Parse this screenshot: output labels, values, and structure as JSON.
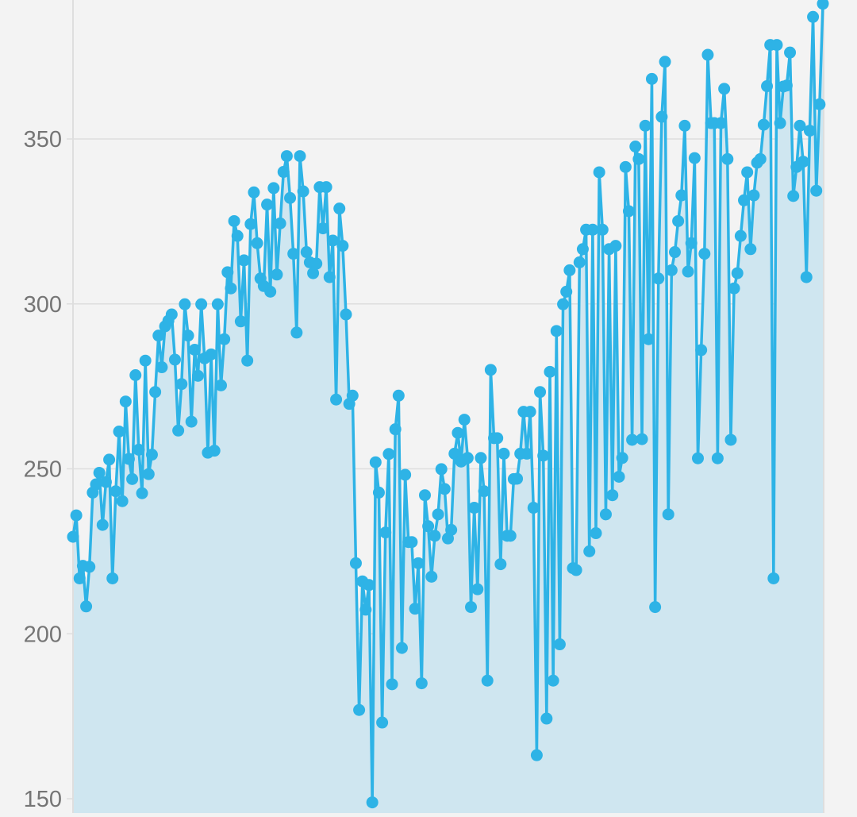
{
  "chart_data": {
    "type": "line",
    "title": "",
    "xlabel": "",
    "ylabel": "",
    "ylim": [
      148,
      391
    ],
    "yticks": [
      "150",
      "200",
      "250",
      "300",
      "350"
    ],
    "grid": true,
    "area_fill": true,
    "colors": {
      "line": "#2eb3e6",
      "fill": "#cfe6f0",
      "grid": "#dedede",
      "tick_label": "#757575",
      "background": "#f3f3f3"
    },
    "series": [
      {
        "values": [
          229.4,
          235.9,
          216.8,
          220.6,
          208.3,
          220.3,
          242.8,
          245.3,
          248.8,
          233.0,
          246.0,
          252.8,
          216.8,
          243.2,
          261.3,
          240.2,
          270.4,
          253.0,
          246.9,
          278.4,
          255.8,
          242.6,
          282.8,
          248.4,
          254.3,
          273.3,
          290.4,
          280.8,
          293.2,
          294.9,
          296.8,
          283.1,
          261.6,
          275.7,
          299.9,
          290.4,
          264.3,
          286.1,
          278.2,
          299.9,
          283.5,
          254.9,
          284.7,
          255.5,
          299.9,
          275.3,
          289.3,
          309.6,
          304.7,
          325.1,
          320.6,
          294.7,
          313.2,
          282.8,
          324.2,
          333.8,
          318.4,
          307.7,
          305.4,
          330.1,
          303.7,
          335.1,
          308.9,
          324.4,
          340.0,
          344.8,
          332.1,
          315.2,
          291.3,
          344.8,
          334.1,
          315.7,
          312.6,
          309.3,
          312.2,
          335.4,
          322.9,
          335.4,
          308.1,
          319.2,
          271.0,
          328.9,
          317.6,
          296.8,
          269.7,
          272.2,
          221.4,
          176.9,
          215.9,
          207.3,
          214.8,
          148.9,
          252.0,
          242.8,
          173.1,
          230.7,
          254.5,
          184.7,
          262.0,
          272.2,
          195.7,
          248.2,
          227.8,
          227.8,
          207.6,
          221.4,
          185.0,
          242.0,
          232.6,
          217.3,
          229.7,
          236.2,
          249.9,
          243.9,
          228.9,
          231.5,
          254.6,
          260.9,
          252.2,
          264.9,
          253.3,
          208.1,
          238.2,
          213.5,
          253.3,
          243.2,
          185.8,
          280.0,
          259.3,
          259.3,
          221.1,
          254.6,
          229.7,
          229.7,
          246.9,
          247.0,
          254.6,
          267.3,
          254.6,
          267.3,
          238.2,
          163.2,
          273.3,
          254.0,
          174.3,
          279.4,
          185.8,
          291.8,
          196.8,
          299.9,
          303.7,
          310.2,
          219.9,
          219.3,
          312.6,
          316.6,
          322.5,
          225.0,
          322.5,
          230.5,
          339.9,
          322.5,
          236.2,
          316.6,
          242.0,
          317.6,
          247.6,
          253.3,
          341.5,
          328.1,
          258.8,
          347.7,
          343.9,
          259.0,
          354.0,
          289.3,
          368.2,
          208.1,
          307.7,
          356.7,
          373.4,
          236.2,
          310.2,
          315.7,
          325.1,
          332.9,
          354.0,
          309.8,
          318.4,
          344.2,
          253.2,
          286.0,
          315.2,
          375.5,
          354.8,
          354.8,
          253.2,
          354.8,
          365.2,
          343.9,
          258.8,
          304.7,
          309.3,
          320.6,
          331.4,
          339.9,
          316.6,
          332.9,
          342.8,
          343.9,
          354.3,
          366.0,
          378.5,
          216.8,
          378.5,
          354.8,
          365.9,
          366.2,
          376.2,
          332.7,
          341.5,
          354.0,
          343.1,
          308.1,
          352.5,
          387.0,
          334.3,
          360.5,
          391.0
        ]
      }
    ]
  }
}
